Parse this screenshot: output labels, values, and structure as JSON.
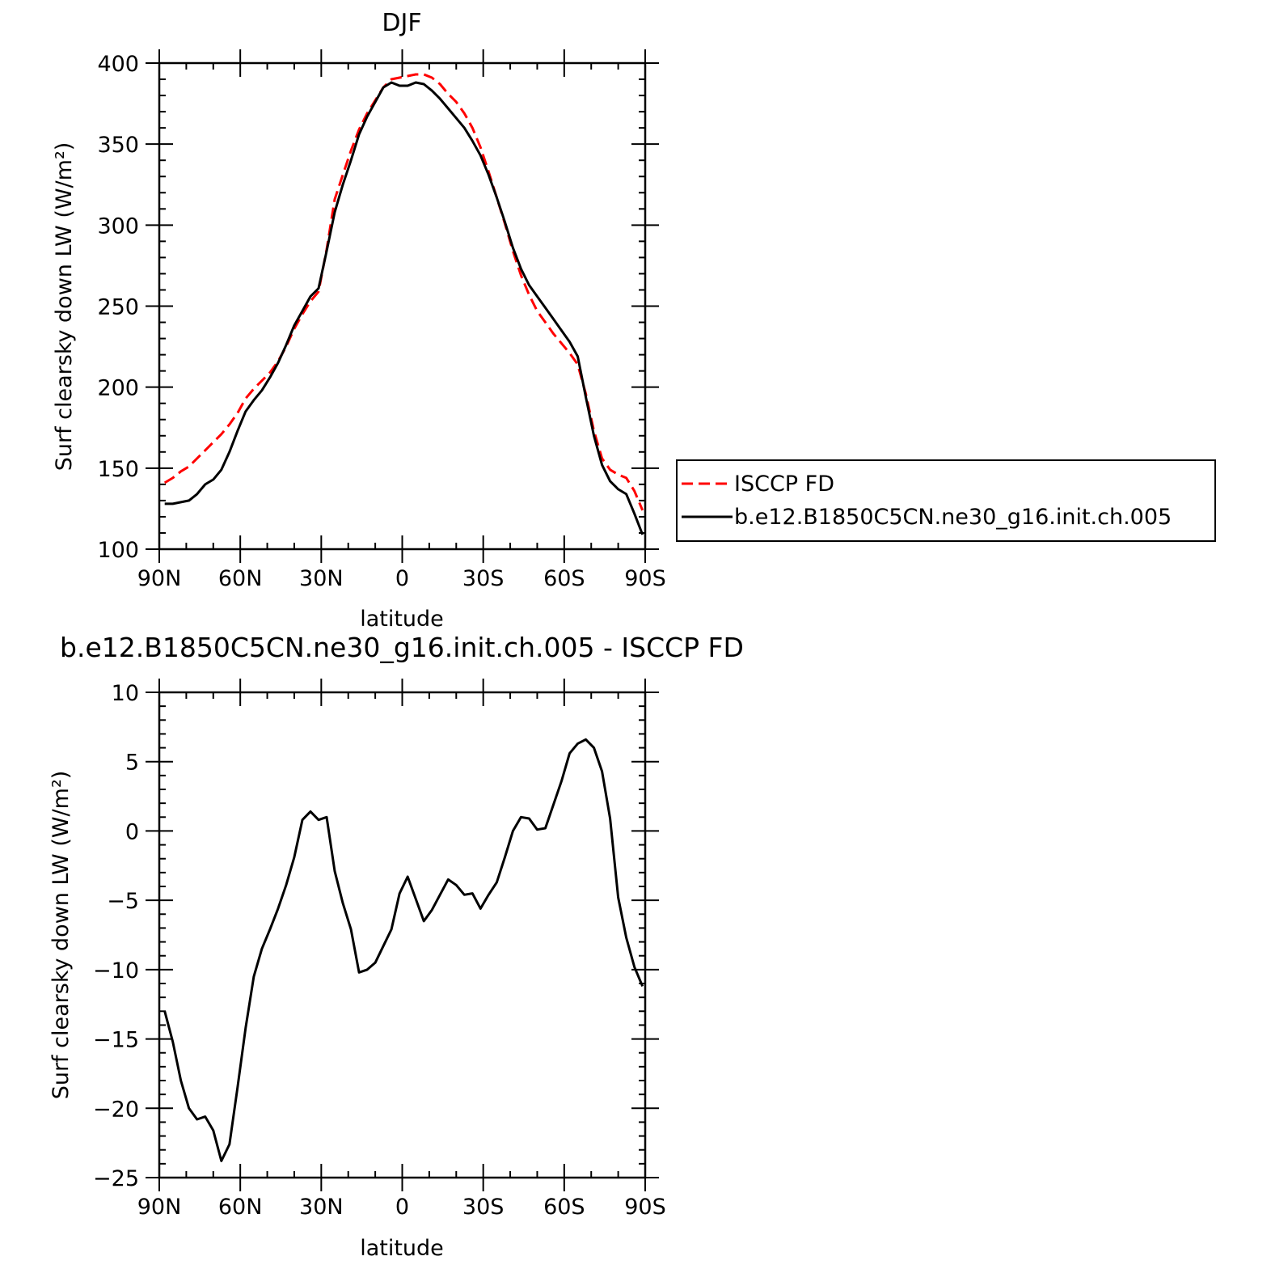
{
  "chart_data": [
    {
      "type": "line",
      "title": "DJF",
      "xlabel": "latitude",
      "ylabel": "Surf clearsky down LW (W/m²)",
      "xlim": [
        90,
        -90
      ],
      "ylim": [
        100,
        400
      ],
      "x_ticks": [
        {
          "value": 90,
          "label": "90N"
        },
        {
          "value": 60,
          "label": "60N"
        },
        {
          "value": 30,
          "label": "30N"
        },
        {
          "value": 0,
          "label": "0"
        },
        {
          "value": -30,
          "label": "30S"
        },
        {
          "value": -60,
          "label": "60S"
        },
        {
          "value": -90,
          "label": "90S"
        }
      ],
      "y_ticks": [
        {
          "value": 100,
          "label": "100"
        },
        {
          "value": 150,
          "label": "150"
        },
        {
          "value": 200,
          "label": "200"
        },
        {
          "value": 250,
          "label": "250"
        },
        {
          "value": 300,
          "label": "300"
        },
        {
          "value": 350,
          "label": "350"
        },
        {
          "value": 400,
          "label": "400"
        }
      ],
      "legend": "right",
      "series": [
        {
          "name": "ISCCP FD",
          "color": "#ff0000",
          "style": "dashed",
          "x": [
            88,
            85,
            82,
            79,
            76,
            73,
            70,
            67,
            64,
            61,
            58,
            55,
            52,
            49,
            46,
            43,
            40,
            37,
            34,
            31,
            28,
            25,
            22,
            19,
            16,
            13,
            10,
            7,
            4,
            1,
            -2,
            -5,
            -8,
            -11,
            -14,
            -17,
            -20,
            -23,
            -26,
            -29,
            -32,
            -35,
            -38,
            -41,
            -44,
            -47,
            -50,
            -53,
            -56,
            -59,
            -62,
            -65,
            -68,
            -71,
            -74,
            -77,
            -80,
            -83,
            -86,
            -89
          ],
          "y": [
            141,
            144,
            148,
            151,
            156,
            161,
            166,
            171,
            177,
            184,
            193,
            199,
            204,
            209,
            216,
            225,
            236,
            245,
            253,
            259,
            285,
            316,
            331,
            346,
            359,
            369,
            377,
            385,
            390,
            391,
            392,
            393,
            393,
            391,
            387,
            381,
            376,
            369,
            360,
            348,
            333,
            317,
            301,
            284,
            269,
            257,
            247,
            240,
            233,
            227,
            221,
            214,
            196,
            173,
            156,
            149,
            146,
            144,
            136,
            124
          ]
        },
        {
          "name": "b.e12.B1850C5CN.ne30_g16.init.ch.005",
          "color": "#000000",
          "style": "solid",
          "x": [
            88,
            85,
            82,
            79,
            76,
            73,
            70,
            67,
            64,
            61,
            58,
            55,
            52,
            49,
            46,
            43,
            40,
            37,
            34,
            31,
            28,
            25,
            22,
            19,
            16,
            13,
            10,
            7,
            4,
            1,
            -2,
            -5,
            -8,
            -11,
            -14,
            -17,
            -20,
            -23,
            -26,
            -29,
            -32,
            -35,
            -38,
            -41,
            -44,
            -47,
            -50,
            -53,
            -56,
            -59,
            -62,
            -65,
            -68,
            -71,
            -74,
            -77,
            -80,
            -83,
            -86,
            -89
          ],
          "y": [
            128,
            128,
            129,
            130,
            134,
            140,
            143,
            149,
            160,
            173,
            185,
            192,
            198,
            206,
            215,
            226,
            238,
            247,
            256,
            261,
            284,
            308,
            325,
            340,
            356,
            367,
            376,
            385,
            388,
            386,
            386,
            388,
            387,
            383,
            378,
            372,
            366,
            360,
            352,
            343,
            331,
            317,
            302,
            286,
            273,
            263,
            256,
            249,
            242,
            235,
            228,
            219,
            194,
            170,
            152,
            142,
            137,
            134,
            122,
            109
          ]
        }
      ]
    },
    {
      "type": "line",
      "title": "b.e12.B1850C5CN.ne30_g16.init.ch.005 - ISCCP FD",
      "xlabel": "latitude",
      "ylabel": "Surf clearsky down LW (W/m²)",
      "xlim": [
        90,
        -90
      ],
      "ylim": [
        -25,
        10
      ],
      "x_ticks": [
        {
          "value": 90,
          "label": "90N"
        },
        {
          "value": 60,
          "label": "60N"
        },
        {
          "value": 30,
          "label": "30N"
        },
        {
          "value": 0,
          "label": "0"
        },
        {
          "value": -30,
          "label": "30S"
        },
        {
          "value": -60,
          "label": "60S"
        },
        {
          "value": -90,
          "label": "90S"
        }
      ],
      "y_ticks": [
        {
          "value": -25,
          "label": "−25"
        },
        {
          "value": -20,
          "label": "−20"
        },
        {
          "value": -15,
          "label": "−15"
        },
        {
          "value": -10,
          "label": "−10"
        },
        {
          "value": -5,
          "label": "−5"
        },
        {
          "value": 0,
          "label": "0"
        },
        {
          "value": 5,
          "label": "5"
        },
        {
          "value": 10,
          "label": "10"
        }
      ],
      "series": [
        {
          "color": "#000000",
          "style": "solid",
          "x": [
            88,
            85,
            82,
            79,
            76,
            73,
            70,
            67,
            64,
            61,
            58,
            55,
            52,
            49,
            46,
            43,
            40,
            37,
            34,
            31,
            28,
            25,
            22,
            19,
            16,
            13,
            10,
            7,
            4,
            1,
            -2,
            -5,
            -8,
            -11,
            -14,
            -17,
            -20,
            -23,
            -26,
            -29,
            -32,
            -35,
            -38,
            -41,
            -44,
            -47,
            -50,
            -53,
            -56,
            -59,
            -62,
            -65,
            -68,
            -71,
            -74,
            -77,
            -80,
            -83,
            -86,
            -89
          ],
          "y": [
            -13,
            -15.2,
            -18,
            -20,
            -20.8,
            -20.6,
            -21.6,
            -23.8,
            -22.6,
            -18.5,
            -14.2,
            -10.5,
            -8.5,
            -7.1,
            -5.6,
            -3.9,
            -1.9,
            0.8,
            1.4,
            0.8,
            1.0,
            -2.9,
            -5.2,
            -7.1,
            -10.2,
            -10.0,
            -9.5,
            -8.3,
            -7.1,
            -4.5,
            -3.3,
            -4.9,
            -6.5,
            -5.7,
            -4.6,
            -3.5,
            -3.9,
            -4.6,
            -4.5,
            -5.6,
            -4.6,
            -3.7,
            -1.9,
            0.0,
            1.0,
            0.9,
            0.1,
            0.2,
            1.9,
            3.6,
            5.6,
            6.3,
            6.6,
            6.0,
            4.3,
            0.9,
            -4.8,
            -7.7,
            -9.8,
            -11.2
          ]
        }
      ]
    }
  ]
}
